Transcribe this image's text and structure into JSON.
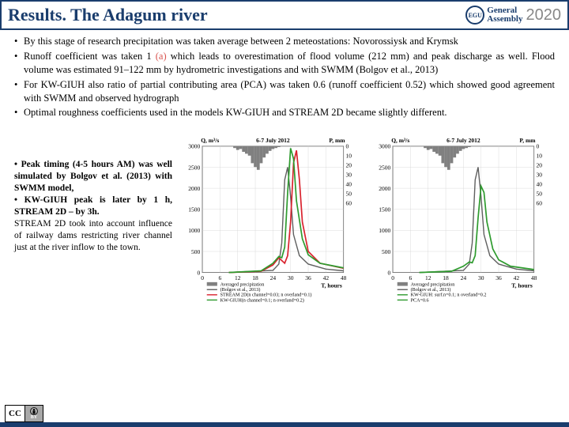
{
  "header": {
    "title": "Results. The Adagum river",
    "logo_text": "EGU",
    "logo_sub1": "General",
    "logo_sub2": "Assembly",
    "year": "2020"
  },
  "bullets": [
    "By this stage of research precipitation was taken average between 2 meteostations: Novorossiysk and Krymsk",
    "Runoff coefficient was taken 1 (a) which leads to overestimation of flood volume (212 mm) and peak discharge as well. Flood volume was estimated 91–122 mm by hydrometric investigations and with SWMM (Bolgov et al., 2013)",
    "For KW-GIUH also ratio of partial contributing area (PCA) was taken 0.6 (runoff coefficient 0.52) which showed good agreement with SWMM and observed hydrograph",
    "Optimal roughness coefficients used in the models KW-GIUH and STREAM 2D became slightly different."
  ],
  "notes": [
    {
      "bold": true,
      "text": "• Peak timing (4-5 hours AM) was well simulated by Bolgov et al. (2013) with SWMM model,"
    },
    {
      "bold": true,
      "text": "• KW-GIUH peak is later by 1 h, STREAM 2D – by 3h."
    },
    {
      "bold": false,
      "text": "STREAM 2D took into account influence of railway dams restricting river channel just at the river inflow to the town."
    }
  ],
  "chart_common": {
    "date_label": "6-7 July 2012",
    "y1_label": "Q, m³/s",
    "y2_label": "P, mm",
    "x_label": "T, hours",
    "y1_max": 3000,
    "y1_step": 500,
    "y2_max": 60,
    "y2_step": 10,
    "x_ticks": [
      0,
      6,
      12,
      18,
      24,
      30,
      36,
      42,
      48
    ],
    "precip": [
      0,
      0,
      2,
      4,
      3,
      6,
      8,
      10,
      18,
      22,
      25,
      18,
      12,
      8,
      5,
      3,
      2,
      1,
      0,
      0,
      0,
      0,
      0,
      0
    ],
    "precip_color": "#808080",
    "grid_color": "#d0d0d0",
    "bg": "#ffffff",
    "title_fontsize": 9,
    "axis_fontsize": 8
  },
  "chart_a": {
    "legend": [
      {
        "label": "Averaged precipitation",
        "color": "#808080",
        "type": "bar"
      },
      {
        "label": "(Bolgov et al., 2013)",
        "color": "#606060",
        "type": "line"
      },
      {
        "label": "STREAM 2D(n channel=0.03; n overland=0.1)",
        "color": "#d9232e",
        "type": "line"
      },
      {
        "label": "KW-GIUH(n channel=0.1; n overland=0.2)",
        "color": "#2e9b2e",
        "type": "line"
      }
    ],
    "series": {
      "bolgov": {
        "color": "#606060",
        "width": 1.5,
        "xy": [
          [
            9,
            0
          ],
          [
            24,
            50
          ],
          [
            26,
            200
          ],
          [
            27,
            700
          ],
          [
            28,
            2200
          ],
          [
            29,
            2500
          ],
          [
            30,
            1800
          ],
          [
            31,
            900
          ],
          [
            33,
            400
          ],
          [
            36,
            200
          ],
          [
            42,
            80
          ],
          [
            48,
            40
          ]
        ]
      },
      "stream": {
        "color": "#d9232e",
        "width": 1.8,
        "xy": [
          [
            9,
            0
          ],
          [
            20,
            30
          ],
          [
            24,
            180
          ],
          [
            26,
            350
          ],
          [
            28,
            220
          ],
          [
            29,
            400
          ],
          [
            30,
            1200
          ],
          [
            31,
            2600
          ],
          [
            32,
            2900
          ],
          [
            33,
            2200
          ],
          [
            34,
            1200
          ],
          [
            36,
            500
          ],
          [
            40,
            220
          ],
          [
            48,
            100
          ]
        ]
      },
      "kwgiuh": {
        "color": "#2e9b2e",
        "width": 1.8,
        "xy": [
          [
            9,
            0
          ],
          [
            20,
            40
          ],
          [
            24,
            220
          ],
          [
            26,
            380
          ],
          [
            27,
            350
          ],
          [
            28,
            600
          ],
          [
            29,
            1900
          ],
          [
            30,
            2950
          ],
          [
            31,
            2700
          ],
          [
            32,
            1700
          ],
          [
            34,
            800
          ],
          [
            36,
            420
          ],
          [
            40,
            220
          ],
          [
            48,
            110
          ]
        ]
      }
    }
  },
  "chart_b": {
    "legend": [
      {
        "label": "Averaged precipitation",
        "color": "#808080",
        "type": "bar"
      },
      {
        "label": "(Bolgov et al., 2013)",
        "color": "#606060",
        "type": "line"
      },
      {
        "label": "KW-GIUH: surf.n=0.1; n overland=0.2",
        "color": "#2e9b2e",
        "type": "line"
      },
      {
        "label": "PCA=0.6",
        "color": "#2e9b2e",
        "type": "line"
      }
    ],
    "series": {
      "bolgov": {
        "color": "#606060",
        "width": 1.5,
        "xy": [
          [
            9,
            0
          ],
          [
            24,
            50
          ],
          [
            26,
            200
          ],
          [
            27,
            700
          ],
          [
            28,
            2200
          ],
          [
            29,
            2500
          ],
          [
            30,
            1800
          ],
          [
            31,
            900
          ],
          [
            33,
            400
          ],
          [
            36,
            200
          ],
          [
            42,
            80
          ],
          [
            48,
            40
          ]
        ]
      },
      "kwgiuh": {
        "color": "#2e9b2e",
        "width": 1.8,
        "xy": [
          [
            9,
            0
          ],
          [
            20,
            30
          ],
          [
            24,
            150
          ],
          [
            26,
            250
          ],
          [
            27,
            230
          ],
          [
            28,
            400
          ],
          [
            29,
            1300
          ],
          [
            30,
            2050
          ],
          [
            31,
            1900
          ],
          [
            32,
            1200
          ],
          [
            34,
            560
          ],
          [
            36,
            300
          ],
          [
            40,
            150
          ],
          [
            48,
            70
          ]
        ]
      }
    }
  },
  "cc": {
    "cc": "CC",
    "by": "BY"
  }
}
